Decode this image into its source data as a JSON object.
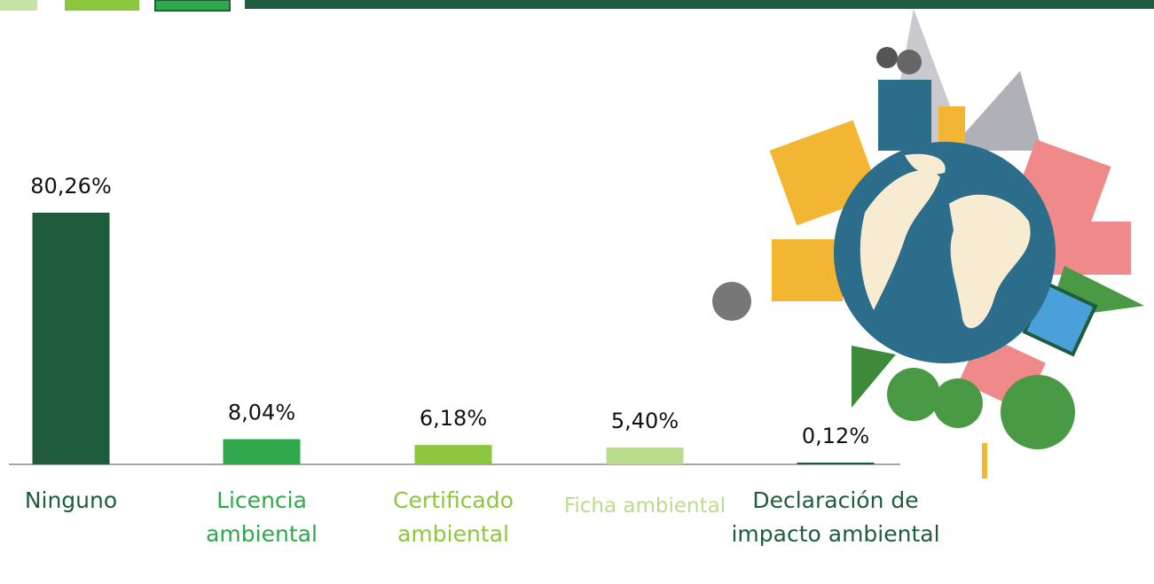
{
  "chart_data": {
    "type": "bar",
    "categories": [
      "Ninguno",
      "Licencia ambiental",
      "Certificado ambiental",
      "Ficha ambiental",
      "Declaración de impacto ambiental"
    ],
    "values": [
      80.26,
      8.04,
      6.18,
      5.4,
      0.12
    ],
    "value_labels": [
      "80,26%",
      "8,04%",
      "6,18%",
      "5,40%",
      "0,12%"
    ],
    "colors": [
      "#1f5c3e",
      "#2ea84a",
      "#8cc63f",
      "#b9dc8d",
      "#1f5c3e"
    ]
  }
}
